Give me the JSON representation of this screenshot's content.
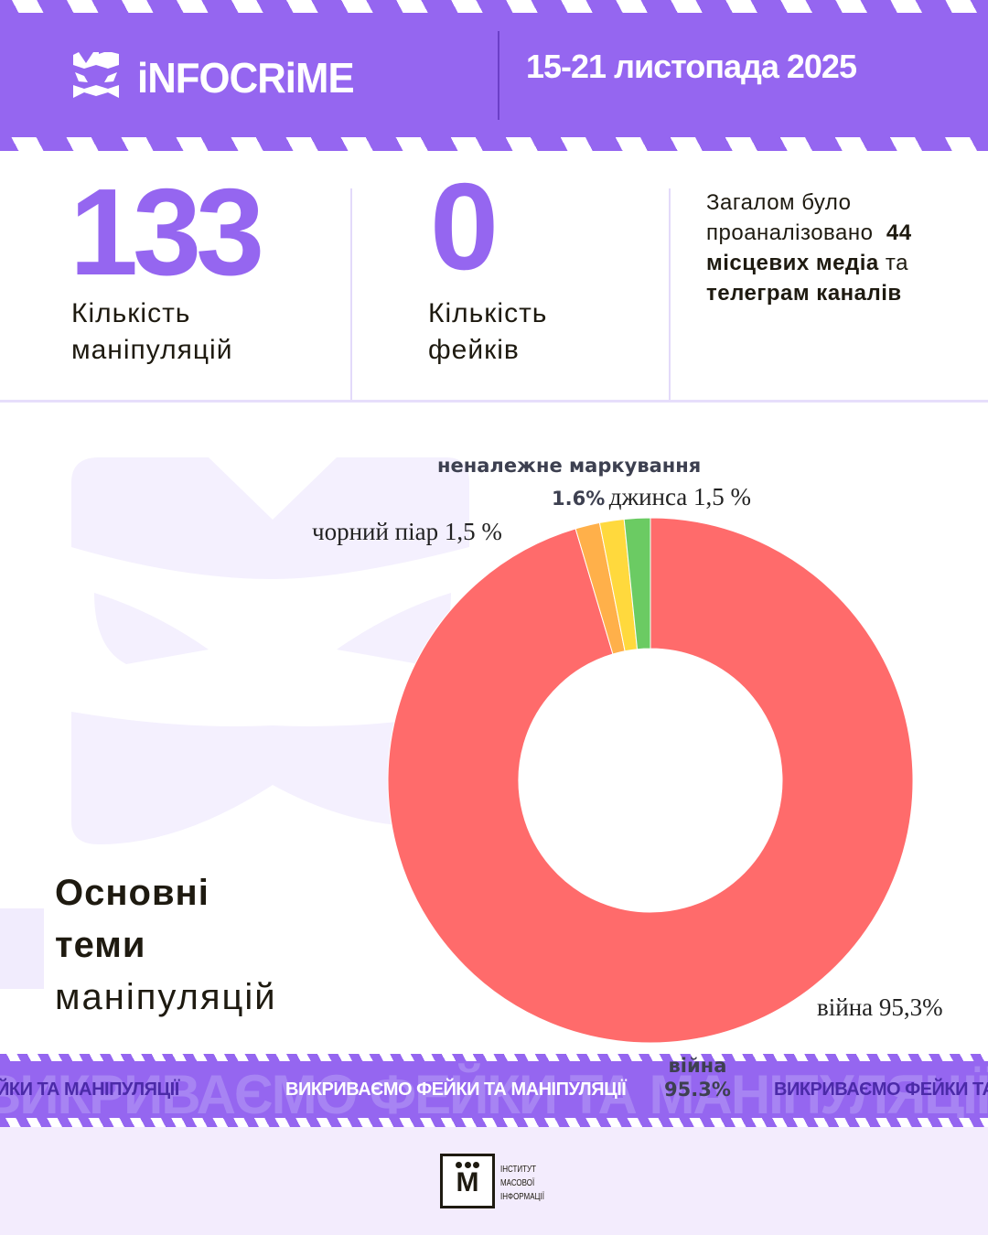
{
  "header": {
    "brand": "iNFOCRiME",
    "date_range": "15-21 листопада 2025",
    "accent": "#9566f0"
  },
  "stats": [
    {
      "value": "133",
      "label_line1": "Кількість",
      "label_line2": "маніпуляцій"
    },
    {
      "value": "0",
      "label_line1": "Кількість",
      "label_line2": "фейків"
    }
  ],
  "summary": {
    "line1": "Загалом було",
    "line2": "проаналізовано",
    "count": "44",
    "line3_bold": "місцевих медіа",
    "line3_rest": "та",
    "line4_bold": "телеграм каналів"
  },
  "section_title": {
    "line1": "Основні",
    "line2": "теми",
    "line3": "маніпуляцій"
  },
  "chart_data": {
    "type": "pie",
    "donut": true,
    "slices": [
      {
        "label": "війна",
        "value": 95.3,
        "color": "#ff6b6b",
        "text": "війна 95,3%"
      },
      {
        "label": "чорний піар",
        "value": 1.5,
        "color": "#ffb04a",
        "text": "чорний піар 1,5 %"
      },
      {
        "label": "джинса",
        "value": 1.5,
        "color": "#ffd93d",
        "text": "джинса 1,5 %"
      },
      {
        "label": "неналежне маркування",
        "value": 1.6,
        "color": "#6bcb63",
        "text": "неналежне маркування",
        "pct": "1.6%"
      }
    ],
    "overlay_label": {
      "line1": "війна",
      "line2": "95.3%"
    }
  },
  "ticker": {
    "left": "ЙКИ ТА МАНІПУЛЯЦІЇ",
    "center": "ВИКРИВАЄМО ФЕЙКИ ТА МАНІПУЛЯЦІЇ",
    "right": "ВИКРИВАЄМО ФЕЙКИ ТА МАНІПУЛЯЦІЇ",
    "background": "ВИКРИВАЄМО ФЕЙКИ ТА МАНІПУЛЯЦІЇ"
  },
  "footer": {
    "org_logo": "ІНСТИТУТ МАСОВОЇ ІНФОРМАЦІЇ",
    "org_line1": "ІНСТИТУТ",
    "org_line2": "МАСОВОЇ",
    "org_line3": "ІНФОРМАЦІЇ"
  }
}
